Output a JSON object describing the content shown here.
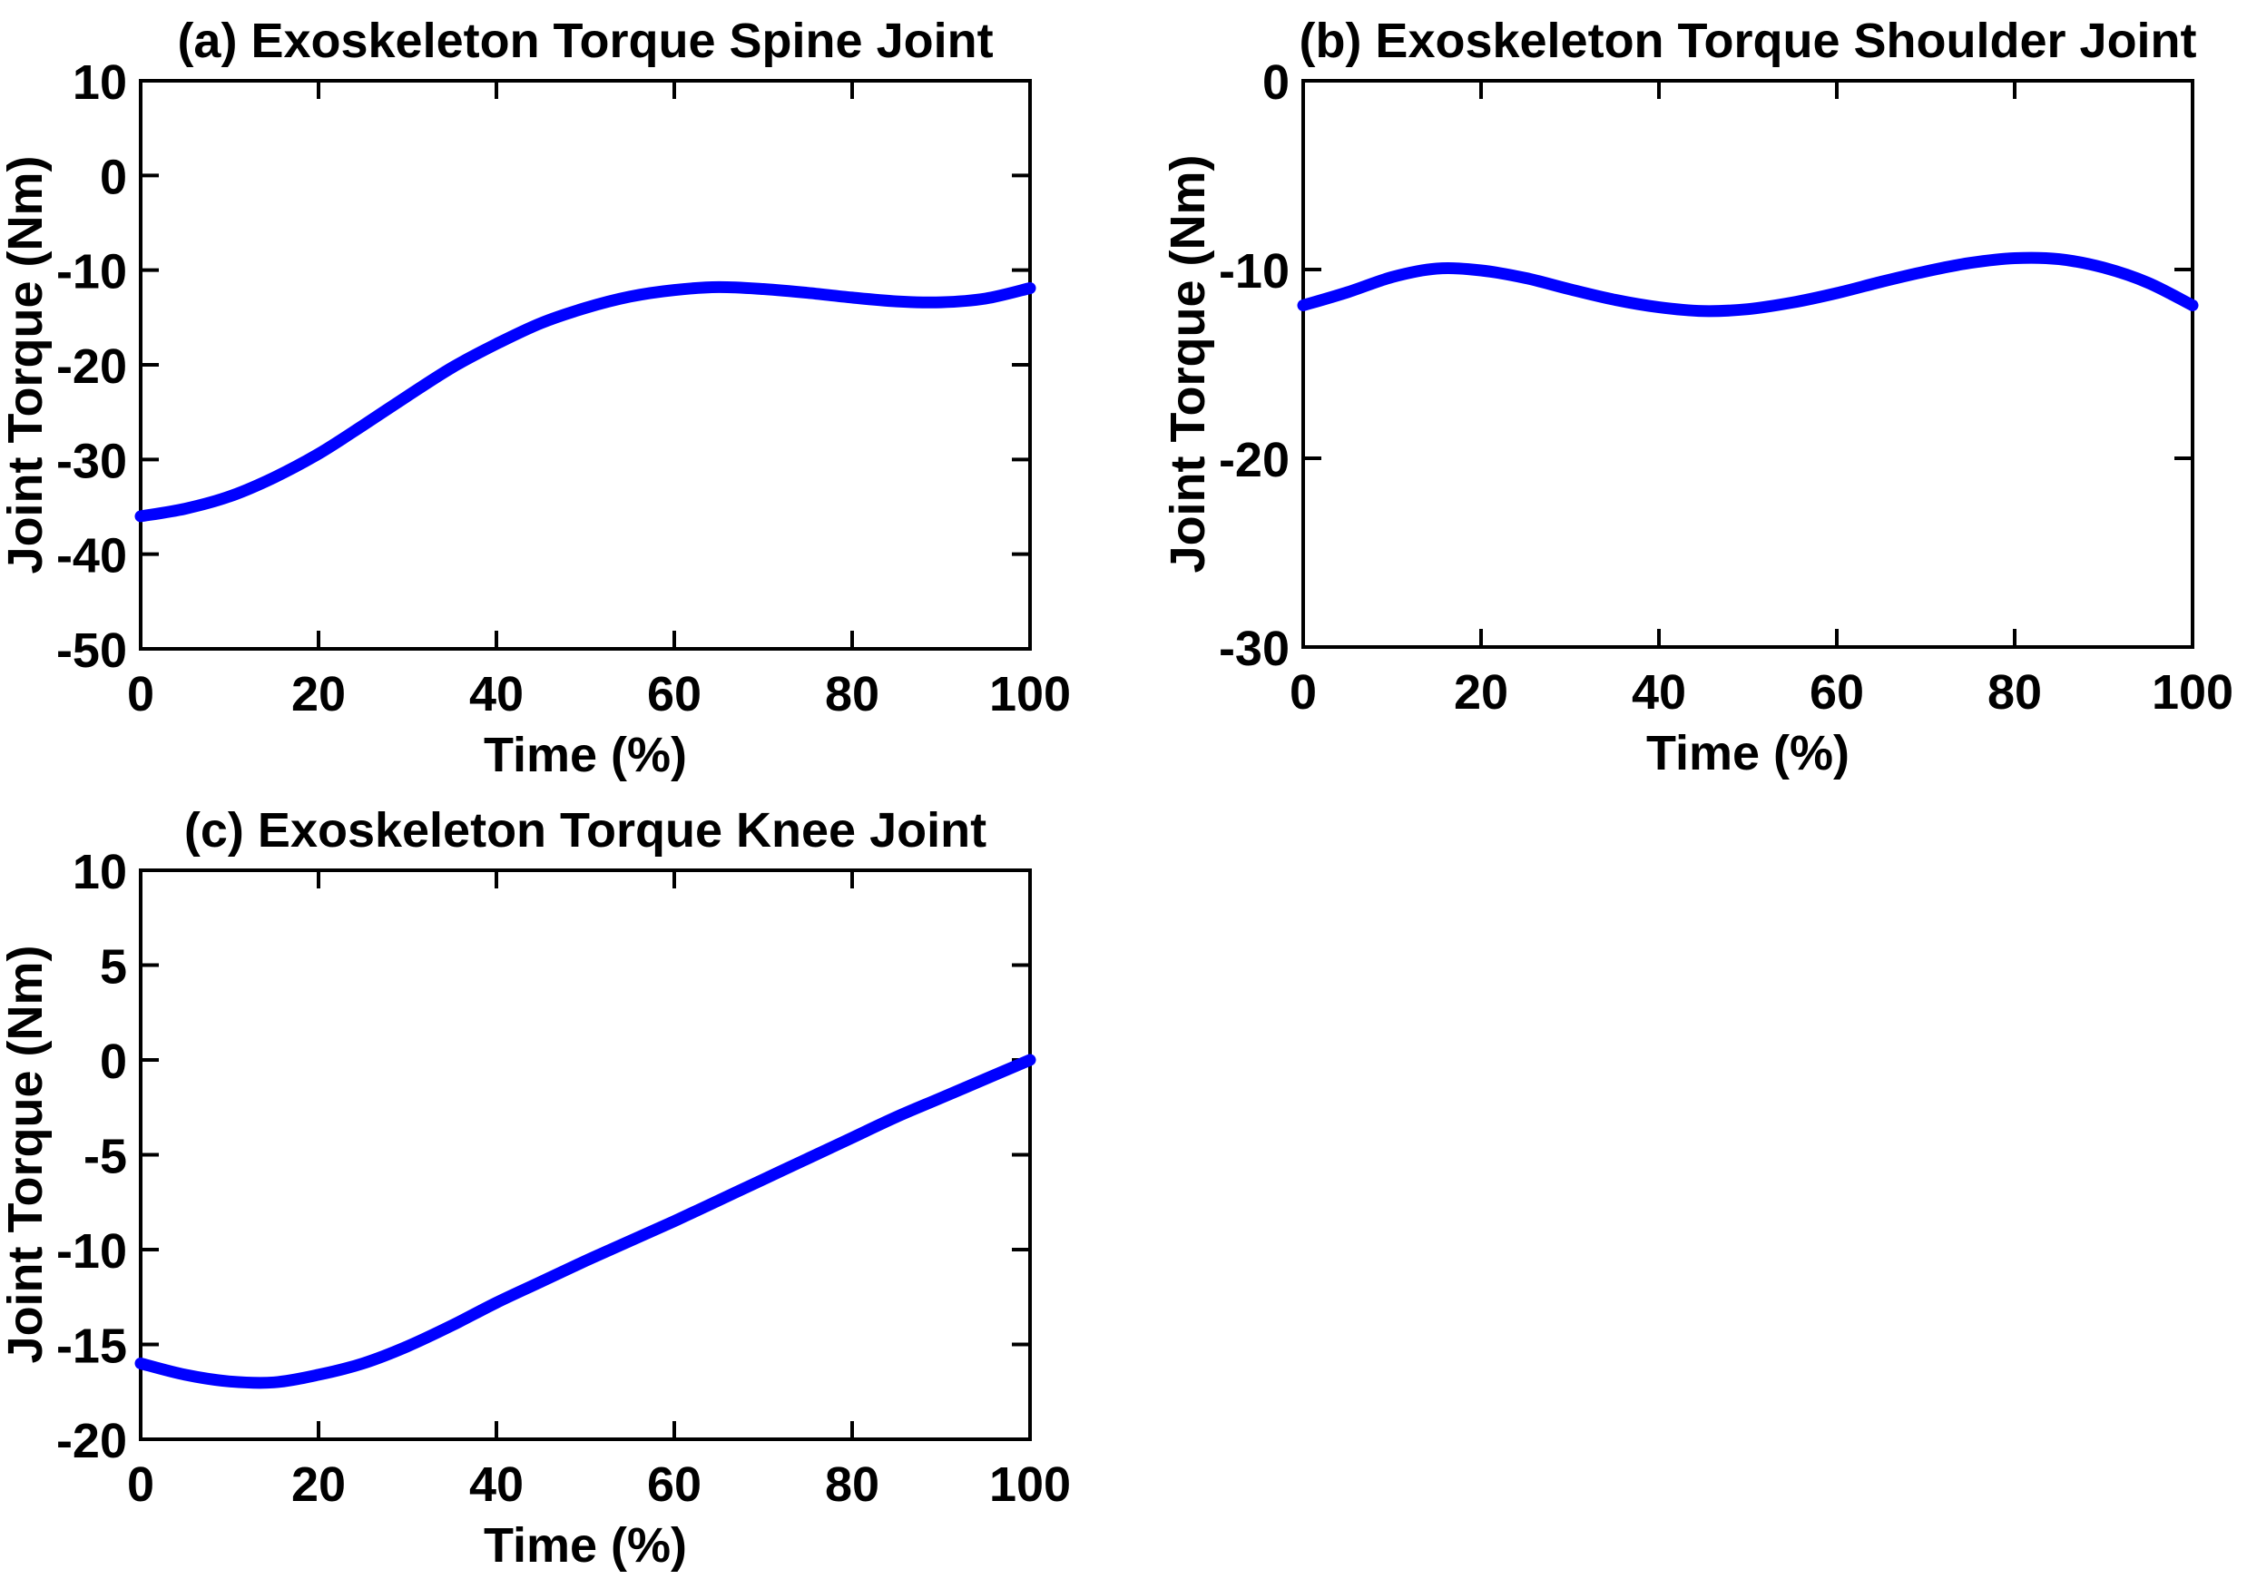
{
  "figure": {
    "background": "#ffffff",
    "axis_color": "#000000",
    "text_color": "#000000",
    "line_color": "#0000ff"
  },
  "chart_data": [
    {
      "id": "spine",
      "type": "line",
      "panel_label": "(a)",
      "title": "(a) Exoskeleton Torque Spine Joint",
      "xlabel": "Time (%)",
      "ylabel": "Joint Torque (Nm)",
      "xlim": [
        0,
        100
      ],
      "ylim": [
        -50,
        10
      ],
      "xticks": [
        0,
        20,
        40,
        60,
        80,
        100
      ],
      "yticks": [
        10,
        0,
        -10,
        -20,
        -30,
        -40,
        -50
      ],
      "grid": false,
      "legend": null,
      "series": [
        {
          "name": "exoskeleton-torque-spine",
          "color": "#0000ff",
          "x": [
            0,
            5,
            10,
            15,
            20,
            25,
            30,
            35,
            40,
            45,
            50,
            55,
            60,
            65,
            70,
            75,
            80,
            85,
            90,
            95,
            100
          ],
          "y": [
            -36.0,
            -35.2,
            -33.9,
            -31.9,
            -29.4,
            -26.4,
            -23.3,
            -20.3,
            -17.8,
            -15.6,
            -14.0,
            -12.8,
            -12.1,
            -11.8,
            -12.0,
            -12.4,
            -12.9,
            -13.3,
            -13.4,
            -13.0,
            -11.9
          ]
        }
      ]
    },
    {
      "id": "shoulder",
      "type": "line",
      "panel_label": "(b)",
      "title": "(b) Exoskeleton Torque Shoulder Joint",
      "xlabel": "Time (%)",
      "ylabel": "Joint Torque (Nm)",
      "xlim": [
        0,
        100
      ],
      "ylim": [
        -30,
        0
      ],
      "xticks": [
        0,
        20,
        40,
        60,
        80,
        100
      ],
      "yticks": [
        0,
        -10,
        -20,
        -30
      ],
      "grid": false,
      "legend": null,
      "series": [
        {
          "name": "exoskeleton-torque-shoulder",
          "color": "#0000ff",
          "x": [
            0,
            5,
            10,
            15,
            20,
            25,
            30,
            35,
            40,
            45,
            50,
            55,
            60,
            65,
            70,
            75,
            80,
            85,
            90,
            95,
            100
          ],
          "y": [
            -11.9,
            -11.2,
            -10.4,
            -9.95,
            -10.05,
            -10.45,
            -11.05,
            -11.6,
            -12.0,
            -12.2,
            -12.1,
            -11.75,
            -11.25,
            -10.65,
            -10.1,
            -9.65,
            -9.4,
            -9.45,
            -9.9,
            -10.7,
            -11.9
          ]
        }
      ]
    },
    {
      "id": "knee",
      "type": "line",
      "panel_label": "(c)",
      "title": "(c) Exoskeleton Torque Knee Joint",
      "xlabel": "Time (%)",
      "ylabel": "Joint Torque (Nm)",
      "xlim": [
        0,
        100
      ],
      "ylim": [
        -20,
        10
      ],
      "xticks": [
        0,
        20,
        40,
        60,
        80,
        100
      ],
      "yticks": [
        10,
        5,
        0,
        -5,
        -10,
        -15,
        -20
      ],
      "grid": false,
      "legend": null,
      "series": [
        {
          "name": "exoskeleton-torque-knee",
          "color": "#0000ff",
          "x": [
            0,
            5,
            10,
            15,
            20,
            25,
            30,
            35,
            40,
            45,
            50,
            55,
            60,
            65,
            70,
            75,
            80,
            85,
            90,
            95,
            100
          ],
          "y": [
            -16.0,
            -16.6,
            -16.95,
            -17.0,
            -16.6,
            -16.0,
            -15.1,
            -14.0,
            -12.8,
            -11.7,
            -10.6,
            -9.55,
            -8.5,
            -7.4,
            -6.3,
            -5.2,
            -4.1,
            -3.0,
            -2.0,
            -1.0,
            0.0
          ]
        }
      ]
    }
  ]
}
